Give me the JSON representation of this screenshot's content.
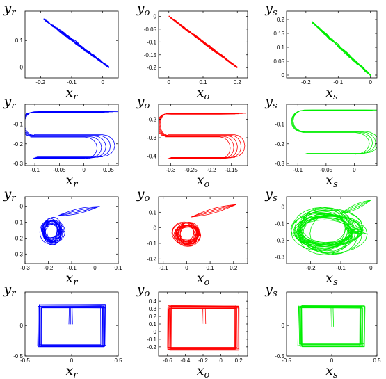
{
  "chart_data": [
    {
      "type": "line",
      "row": 0,
      "col": 0,
      "xlabel": "x",
      "xsub": "r",
      "ylabel": "y",
      "ysub": "r",
      "color": "#0000ff",
      "xlim": [
        -0.25,
        0.05
      ],
      "ylim": [
        -0.04,
        0.21
      ],
      "xticks": [
        {
          "v": -0.2,
          "label": "-0.2"
        },
        {
          "v": -0.1,
          "label": "-0.1"
        },
        {
          "v": 0,
          "label": "0"
        }
      ],
      "yticks": [
        {
          "v": 0,
          "label": "0"
        },
        {
          "v": 0.1,
          "label": "0.1"
        }
      ],
      "shape": "diag",
      "params": {
        "x0": -0.19,
        "y0": 0.18,
        "x1": 0.02,
        "y1": 0.0,
        "n": 6,
        "spread": 0.02
      }
    },
    {
      "type": "line",
      "row": 0,
      "col": 1,
      "xlabel": "x",
      "xsub": "o",
      "ylabel": "y",
      "ysub": "o",
      "color": "#ff0000",
      "xlim": [
        -0.03,
        0.23
      ],
      "ylim": [
        -0.24,
        0.02
      ],
      "xticks": [
        {
          "v": 0,
          "label": "0"
        },
        {
          "v": 0.1,
          "label": "0.1"
        },
        {
          "v": 0.2,
          "label": "0.2"
        }
      ],
      "yticks": [
        {
          "v": 0,
          "label": "0"
        },
        {
          "v": -0.05,
          "label": "-0.05"
        },
        {
          "v": -0.1,
          "label": "-0.1"
        },
        {
          "v": -0.15,
          "label": "-0.15"
        },
        {
          "v": -0.2,
          "label": "-0.2"
        }
      ],
      "shape": "diag",
      "params": {
        "x0": 0.0,
        "y0": 0.0,
        "x1": 0.2,
        "y1": -0.2,
        "n": 6,
        "spread": 0.02
      }
    },
    {
      "type": "line",
      "row": 0,
      "col": 2,
      "xlabel": "x",
      "xsub": "s",
      "ylabel": "y",
      "ysub": "s",
      "color": "#00ee00",
      "xlim": [
        -0.26,
        0.02
      ],
      "ylim": [
        -0.01,
        0.23
      ],
      "xticks": [
        {
          "v": -0.2,
          "label": "-0.2"
        },
        {
          "v": -0.1,
          "label": "-0.1"
        },
        {
          "v": 0,
          "label": "0"
        }
      ],
      "yticks": [
        {
          "v": 0,
          "label": "0"
        },
        {
          "v": 0.05,
          "label": "0.05"
        },
        {
          "v": 0.1,
          "label": "0.1"
        },
        {
          "v": 0.15,
          "label": "0.15"
        },
        {
          "v": 0.2,
          "label": "0.2"
        }
      ],
      "shape": "diag",
      "params": {
        "x0": -0.18,
        "y0": 0.19,
        "x1": 0.0,
        "y1": 0.0,
        "n": 6,
        "spread": 0.025
      }
    },
    {
      "type": "line",
      "row": 1,
      "col": 0,
      "xlabel": "x",
      "xsub": "r",
      "ylabel": "y",
      "ysub": "r",
      "color": "#0000ff",
      "xlim": [
        -0.12,
        0.07
      ],
      "ylim": [
        -0.31,
        0.0
      ],
      "xticks": [
        {
          "v": -0.1,
          "label": "-0.1"
        },
        {
          "v": -0.05,
          "label": "-0.05"
        },
        {
          "v": 0,
          "label": "0"
        },
        {
          "v": 0.05,
          "label": "0.05"
        }
      ],
      "yticks": [
        {
          "v": -0.1,
          "label": "-0.1"
        },
        {
          "v": -0.2,
          "label": "-0.2"
        },
        {
          "v": -0.3,
          "label": "-0.3"
        }
      ],
      "shape": "s",
      "params": {
        "xl": -0.105,
        "xr": 0.02,
        "yt": -0.04,
        "ym": -0.16,
        "yb": -0.27,
        "n": 5,
        "spread": 0.03
      }
    },
    {
      "type": "line",
      "row": 1,
      "col": 1,
      "xlabel": "x",
      "xsub": "o",
      "ylabel": "y",
      "ysub": "o",
      "color": "#ff0000",
      "xlim": [
        -0.33,
        -0.11
      ],
      "ylim": [
        -0.45,
        -0.12
      ],
      "xticks": [
        {
          "v": -0.3,
          "label": "-0.3"
        },
        {
          "v": -0.25,
          "label": "-0.25"
        },
        {
          "v": -0.2,
          "label": "-0.2"
        },
        {
          "v": -0.15,
          "label": "-0.15"
        }
      ],
      "yticks": [
        {
          "v": -0.2,
          "label": "-0.2"
        },
        {
          "v": -0.3,
          "label": "-0.3"
        },
        {
          "v": -0.4,
          "label": "-0.4"
        }
      ],
      "shape": "s",
      "params": {
        "xl": -0.31,
        "xr": -0.16,
        "yt": -0.17,
        "ym": -0.29,
        "yb": -0.41,
        "n": 5,
        "spread": 0.03
      }
    },
    {
      "type": "line",
      "row": 1,
      "col": 2,
      "xlabel": "x",
      "xsub": "s",
      "ylabel": "y",
      "ysub": "s",
      "color": "#00ee00",
      "xlim": [
        -0.12,
        0.04
      ],
      "ylim": [
        -0.31,
        0.0
      ],
      "xticks": [
        {
          "v": -0.1,
          "label": "-0.1"
        },
        {
          "v": -0.05,
          "label": "-0.05"
        },
        {
          "v": 0,
          "label": "0"
        }
      ],
      "yticks": [
        {
          "v": -0.1,
          "label": "-0.1"
        },
        {
          "v": -0.2,
          "label": "-0.2"
        },
        {
          "v": -0.3,
          "label": "-0.3"
        }
      ],
      "shape": "s",
      "params": {
        "xl": -0.09,
        "xr": 0.01,
        "yt": -0.03,
        "ym": -0.14,
        "yb": -0.25,
        "n": 4,
        "spread": 0.015
      }
    },
    {
      "type": "line",
      "row": 2,
      "col": 0,
      "xlabel": "x",
      "xsub": "r",
      "ylabel": "y",
      "ysub": "r",
      "color": "#0000ff",
      "xlim": [
        -0.3,
        0.1
      ],
      "ylim": [
        -0.36,
        0.06
      ],
      "xticks": [
        {
          "v": -0.3,
          "label": "-0.3"
        },
        {
          "v": -0.2,
          "label": "-0.2"
        },
        {
          "v": -0.1,
          "label": "-0.1"
        },
        {
          "v": 0,
          "label": "0"
        },
        {
          "v": 0.1,
          "label": "0.1"
        }
      ],
      "yticks": [
        {
          "v": 0,
          "label": "0"
        },
        {
          "v": -0.1,
          "label": "-0.1"
        },
        {
          "v": -0.2,
          "label": "-0.2"
        },
        {
          "v": -0.3,
          "label": "-0.3"
        }
      ],
      "shape": "loop",
      "params": {
        "cx": -0.185,
        "cy": -0.16,
        "rx": 0.04,
        "ry": 0.065,
        "n": 18,
        "sx": -0.16,
        "sy": -0.06,
        "ex": 0.02,
        "ey": 0.0
      }
    },
    {
      "type": "line",
      "row": 2,
      "col": 1,
      "xlabel": "x",
      "xsub": "o",
      "ylabel": "y",
      "ysub": "o",
      "color": "#ff0000",
      "xlim": [
        -0.12,
        0.26
      ],
      "ylim": [
        -0.23,
        0.2
      ],
      "xticks": [
        {
          "v": -0.1,
          "label": "-0.1"
        },
        {
          "v": 0,
          "label": "0"
        },
        {
          "v": 0.1,
          "label": "0.1"
        },
        {
          "v": 0.2,
          "label": "0.2"
        }
      ],
      "yticks": [
        {
          "v": 0.1,
          "label": "0.1"
        },
        {
          "v": 0,
          "label": "0"
        },
        {
          "v": -0.1,
          "label": "-0.1"
        },
        {
          "v": -0.2,
          "label": "-0.2"
        }
      ],
      "shape": "loop",
      "params": {
        "cx": 0.0,
        "cy": -0.04,
        "rx": 0.045,
        "ry": 0.06,
        "n": 18,
        "sx": 0.02,
        "sy": 0.07,
        "ex": 0.21,
        "ey": 0.15
      }
    },
    {
      "type": "line",
      "row": 2,
      "col": 2,
      "xlabel": "x",
      "xsub": "s",
      "ylabel": "y",
      "ysub": "s",
      "color": "#00ee00",
      "xlim": [
        -0.28,
        0.02
      ],
      "ylim": [
        -0.34,
        0.06
      ],
      "xticks": [
        {
          "v": -0.2,
          "label": "-0.2"
        },
        {
          "v": -0.1,
          "label": "-0.1"
        },
        {
          "v": 0,
          "label": "0"
        }
      ],
      "yticks": [
        {
          "v": 0,
          "label": "0"
        },
        {
          "v": -0.1,
          "label": "-0.1"
        },
        {
          "v": -0.2,
          "label": "-0.2"
        },
        {
          "v": -0.3,
          "label": "-0.3"
        }
      ],
      "shape": "loop",
      "params": {
        "cx": -0.145,
        "cy": -0.145,
        "rx": 0.095,
        "ry": 0.11,
        "n": 26,
        "sx": -0.1,
        "sy": -0.04,
        "ex": 0.0,
        "ey": 0.04
      }
    },
    {
      "type": "line",
      "row": 3,
      "col": 0,
      "xlabel": "x",
      "xsub": "r",
      "ylabel": "y",
      "ysub": "r",
      "color": "#0000ff",
      "xlim": [
        -0.5,
        0.5
      ],
      "ylim": [
        -0.5,
        0.55
      ],
      "xticks": [
        {
          "v": -0.5,
          "label": "-0.5"
        },
        {
          "v": 0,
          "label": "0"
        },
        {
          "v": 0.5,
          "label": "0.5"
        }
      ],
      "yticks": [
        {
          "v": 0,
          "label": "0"
        },
        {
          "v": -0.5,
          "label": "-0.5"
        }
      ],
      "shape": "rect",
      "params": {
        "x0": -0.34,
        "x1": 0.34,
        "y0": -0.32,
        "y1": 0.32,
        "n": 10,
        "jit": 0.03,
        "mx": -0.01,
        "my0": 0.02,
        "my1": 0.3
      }
    },
    {
      "type": "line",
      "row": 3,
      "col": 1,
      "xlabel": "x",
      "xsub": "o",
      "ylabel": "y",
      "ysub": "o",
      "color": "#ff0000",
      "xlim": [
        -0.7,
        0.3
      ],
      "ylim": [
        -0.32,
        0.52
      ],
      "xticks": [
        {
          "v": -0.6,
          "label": "-0.6"
        },
        {
          "v": -0.4,
          "label": "-0.4"
        },
        {
          "v": -0.2,
          "label": "-0.2"
        },
        {
          "v": 0,
          "label": "0"
        },
        {
          "v": 0.2,
          "label": "0.2"
        }
      ],
      "yticks": [
        {
          "v": 0.4,
          "label": "0.4"
        },
        {
          "v": 0.3,
          "label": "0.3"
        },
        {
          "v": 0.2,
          "label": "0.2"
        },
        {
          "v": 0.1,
          "label": "0.1"
        },
        {
          "v": 0,
          "label": "0"
        },
        {
          "v": -0.1,
          "label": "-0.1"
        },
        {
          "v": -0.2,
          "label": "-0.2"
        }
      ],
      "shape": "rect",
      "params": {
        "x0": -0.58,
        "x1": 0.18,
        "y0": -0.22,
        "y1": 0.32,
        "n": 10,
        "jit": 0.025,
        "mx": -0.19,
        "my0": 0.1,
        "my1": 0.31
      }
    },
    {
      "type": "line",
      "row": 3,
      "col": 2,
      "xlabel": "x",
      "xsub": "s",
      "ylabel": "y",
      "ysub": "s",
      "color": "#00ee00",
      "xlim": [
        -0.5,
        0.5
      ],
      "ylim": [
        -0.5,
        0.55
      ],
      "xticks": [
        {
          "v": -0.5,
          "label": "-0.5"
        },
        {
          "v": 0,
          "label": "0"
        },
        {
          "v": 0.5,
          "label": "0.5"
        }
      ],
      "yticks": [
        {
          "v": 0,
          "label": "0"
        },
        {
          "v": -0.5,
          "label": "-0.5"
        }
      ],
      "shape": "rect",
      "params": {
        "x0": -0.34,
        "x1": 0.34,
        "y0": -0.32,
        "y1": 0.3,
        "n": 10,
        "jit": 0.03,
        "mx": 0.0,
        "my0": -0.02,
        "my1": 0.3
      }
    }
  ]
}
